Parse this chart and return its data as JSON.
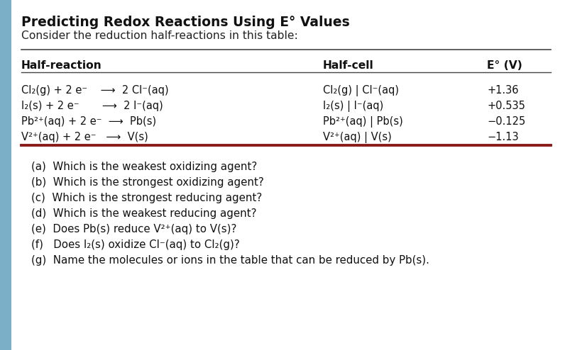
{
  "title": "Predicting Redox Reactions Using E° Values",
  "subtitle": "Consider the reduction half-reactions in this table:",
  "col_headers": [
    "Half-reaction",
    "Half-cell",
    "E° (V)"
  ],
  "half_reactions": [
    "Cl₂(g) + 2 e⁻    ⟶  2 Cl⁻(aq)",
    "I₂(s) + 2 e⁻       ⟶  2 I⁻(aq)",
    "Pb²⁺(aq) + 2 e⁻  ⟶  Pb(s)",
    "V²⁺(aq) + 2 e⁻   ⟶  V(s)"
  ],
  "half_cells": [
    "Cl₂(g) | Cl⁻(aq)",
    "I₂(s) | I⁻(aq)",
    "Pb²⁺(aq) | Pb(s)",
    "V²⁺(aq) | V(s)"
  ],
  "e_values": [
    "+1.36",
    "+0.535",
    "−0.125",
    "−1.13"
  ],
  "questions": [
    "(a)  Which is the weakest oxidizing agent?",
    "(b)  Which is the strongest oxidizing agent?",
    "(c)  Which is the strongest reducing agent?",
    "(d)  Which is the weakest reducing agent?",
    "(e)  Does Pb(s) reduce V²⁺(aq) to V(s)?",
    "(f)   Does I₂(s) oxidize Cl⁻(aq) to Cl₂(g)?",
    "(g)  Name the molecules or ions in the table that can be reduced by Pb(s)."
  ],
  "bg_color": "#e8eef4",
  "white_bg": "#ffffff",
  "dark_red_line": "#8b1a1a",
  "left_bar_color": "#7aafc7",
  "title_color": "#111111",
  "text_color": "#222222",
  "figw": 7.96,
  "figh": 4.94,
  "dpi": 100
}
